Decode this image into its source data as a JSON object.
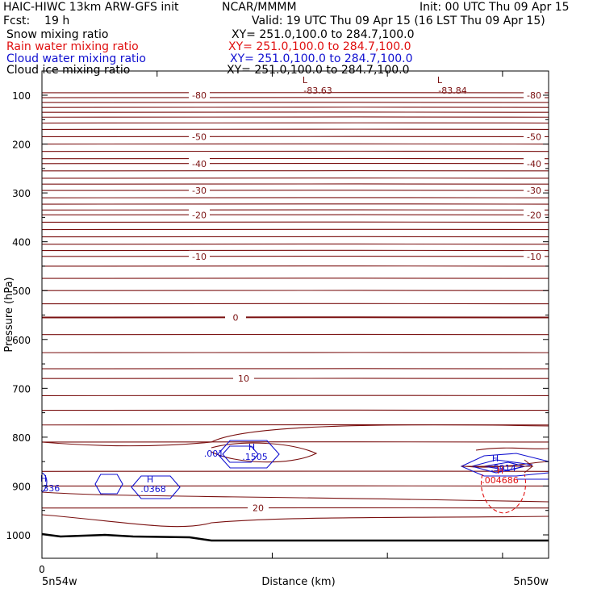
{
  "header": {
    "model": "HAIC-HIWC 13km ARW-GFS init",
    "org": "NCAR/MMMM",
    "init": "Init: 00 UTC Thu 09 Apr 15",
    "fcst": "Fcst:    19 h",
    "valid": "Valid: 19 UTC Thu 09 Apr 15 (16 LST Thu 09 Apr 15)"
  },
  "fields": [
    {
      "name": "Snow mixing ratio",
      "xy": "XY= 251.0,100.0 to 284.7,100.0",
      "color": "#000000"
    },
    {
      "name": "Rain water mixing ratio",
      "xy": "XY= 251.0,100.0 to 284.7,100.0",
      "color": "#e01010"
    },
    {
      "name": "Cloud water mixing ratio",
      "xy": "XY= 251.0,100.0 to 284.7,100.0",
      "color": "#1010d0"
    },
    {
      "name": "Cloud ice mixing ratio",
      "xy": "XY= 251.0,100.0 to 284.7,100.0",
      "color": "#000000"
    }
  ],
  "chart_data": {
    "type": "line",
    "ylabel": "Pressure (hPa)",
    "xlabel": "Distance (km)",
    "yticks": [
      100,
      200,
      300,
      400,
      500,
      600,
      700,
      800,
      900,
      1000
    ],
    "ylim": [
      1050,
      50
    ],
    "xtick_first": "0",
    "x_left_label": "5n54w",
    "x_right_label": "5n50w",
    "temperature_contours": [
      {
        "label": "-80",
        "pressure": 100
      },
      {
        "label": "-50",
        "pressure": 185
      },
      {
        "label": "-40",
        "pressure": 240
      },
      {
        "label": "-30",
        "pressure": 295
      },
      {
        "label": "-20",
        "pressure": 345
      },
      {
        "label": "-10",
        "pressure": 430
      },
      {
        "label": "0",
        "pressure": 555
      },
      {
        "label": "10",
        "pressure": 680
      },
      {
        "label": "20",
        "pressure": 945
      }
    ],
    "lows": [
      {
        "marker": "L",
        "value": "-83.63"
      },
      {
        "marker": "L",
        "value": "-83.84"
      }
    ],
    "highs": [
      {
        "marker": "H",
        "value": ".336",
        "series": "cloud water"
      },
      {
        "marker": "H",
        "value": ".0368",
        "series": "cloud water"
      },
      {
        "marker": "H",
        "value": ".1505",
        "series": "cloud water"
      },
      {
        "marker": "H",
        "value": ".5914",
        "series": "cloud water"
      },
      {
        "marker": "H",
        "value": ".004686",
        "series": "rain water"
      }
    ],
    "contour_labels": [
      ".001"
    ],
    "colors": {
      "temperature": "#7a1010",
      "cloud_water": "#1010d0",
      "rain_water": "#e01010",
      "terrain": "#000000"
    }
  }
}
